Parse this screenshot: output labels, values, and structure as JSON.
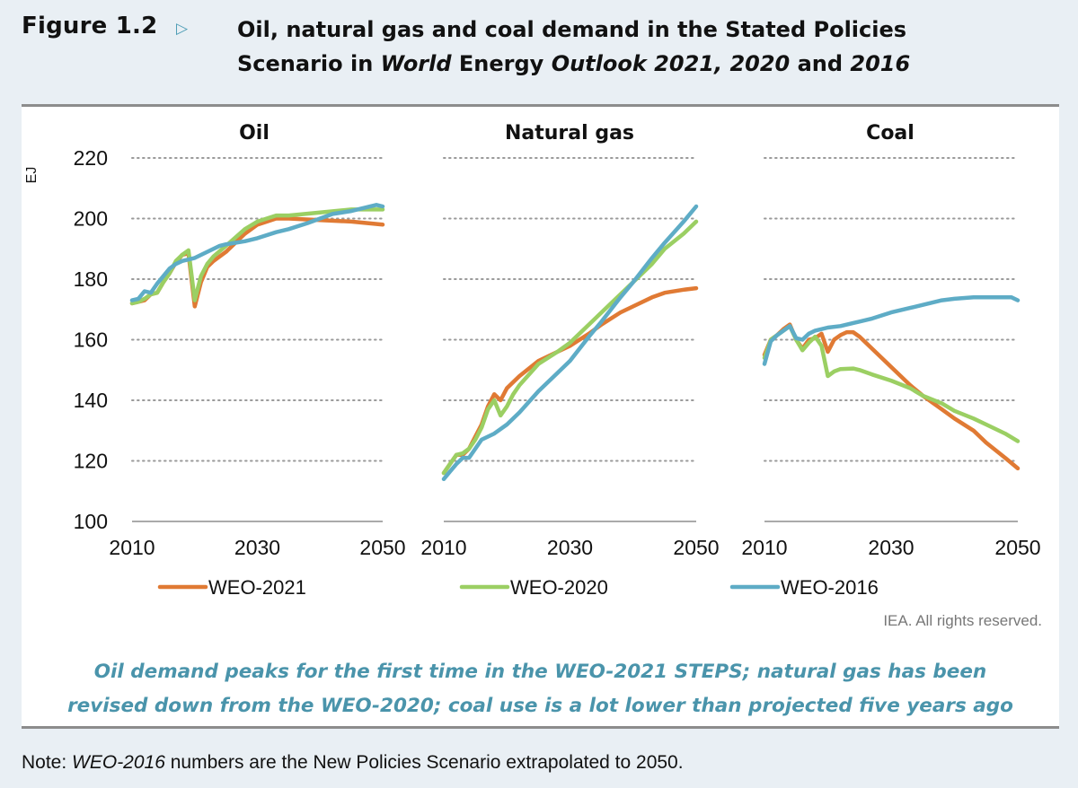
{
  "figure": {
    "label": "Figure 1.2",
    "arrow_icon": "triangle-right-outline",
    "title_line1": "Oil, natural gas and coal demand in the Stated Policies",
    "title_line2_parts": [
      {
        "text": "Scenario in ",
        "italic": false
      },
      {
        "text": "World",
        "italic": true
      },
      {
        "text": " Energy ",
        "italic": false
      },
      {
        "text": "Outlook 2021, 2020",
        "italic": true
      },
      {
        "text": " and ",
        "italic": false
      },
      {
        "text": "2016",
        "italic": true
      }
    ],
    "credit": "IEA. All rights reserved.",
    "caption_line1": "Oil demand peaks for the first time in the WEO-2021 STEPS; natural gas has been",
    "caption_line2": "revised down from the WEO-2020; coal use is a lot lower than projected five years ago",
    "note_prefix": "Note: ",
    "note_italic": "WEO-2016",
    "note_rest": " numbers are the New Policies Scenario extrapolated to 2050."
  },
  "colors": {
    "WEO-2021": "#e07a34",
    "WEO-2020": "#9bcf63",
    "WEO-2016": "#5eacc6",
    "grid": "#9a9a9a",
    "axis": "#777777",
    "caption": "#4a94ab"
  },
  "chart_data": [
    {
      "type": "line",
      "title": "Oil",
      "xlabel": "",
      "ylabel": "EJ",
      "xlim": [
        2010,
        2050
      ],
      "ylim": [
        100,
        220
      ],
      "xticks": [
        2010,
        2030,
        2050
      ],
      "yticks": [
        100,
        120,
        140,
        160,
        180,
        200,
        220
      ],
      "grid": "horizontal-dotted",
      "series": [
        {
          "name": "WEO-2021",
          "x": [
            2010,
            2011,
            2012,
            2013,
            2014,
            2015,
            2016,
            2017,
            2018,
            2019,
            2020,
            2021,
            2022,
            2023,
            2025,
            2028,
            2030,
            2033,
            2035,
            2040,
            2045,
            2050
          ],
          "values": [
            172,
            172.5,
            173,
            175,
            175.5,
            179,
            182,
            185.5,
            188,
            188.5,
            171,
            179,
            184,
            186,
            189,
            195,
            198,
            200,
            200,
            199.5,
            199,
            198
          ]
        },
        {
          "name": "WEO-2020",
          "x": [
            2010,
            2011,
            2012,
            2013,
            2014,
            2015,
            2016,
            2017,
            2018,
            2019,
            2020,
            2021,
            2022,
            2023,
            2025,
            2028,
            2030,
            2033,
            2035,
            2040,
            2045,
            2050
          ],
          "values": [
            172,
            172.5,
            173.5,
            175,
            175.5,
            179,
            182,
            186,
            188,
            189.5,
            173,
            181,
            185,
            187.5,
            191,
            196.5,
            199,
            201,
            201,
            202,
            203,
            203
          ]
        },
        {
          "name": "WEO-2016",
          "x": [
            2010,
            2011,
            2012,
            2013,
            2014,
            2015,
            2016,
            2017,
            2018,
            2020,
            2022,
            2024,
            2025,
            2028,
            2030,
            2033,
            2035,
            2038,
            2040,
            2042,
            2045,
            2049,
            2050
          ],
          "values": [
            173,
            173.5,
            176,
            175.5,
            178.5,
            181,
            183.5,
            185,
            186,
            187,
            189,
            191,
            191.5,
            192.5,
            193.5,
            195.5,
            196.5,
            198.5,
            200,
            201.5,
            202.5,
            204.5,
            204
          ]
        }
      ]
    },
    {
      "type": "line",
      "title": "Natural gas",
      "xlim": [
        2010,
        2050
      ],
      "ylim": [
        100,
        220
      ],
      "xticks": [
        2010,
        2030,
        2050
      ],
      "yticks": [
        100,
        120,
        140,
        160,
        180,
        200,
        220
      ],
      "grid": "horizontal-dotted",
      "series": [
        {
          "name": "WEO-2021",
          "x": [
            2010,
            2011,
            2012,
            2013,
            2014,
            2015,
            2016,
            2017,
            2018,
            2019,
            2020,
            2021,
            2022,
            2025,
            2028,
            2030,
            2033,
            2035,
            2038,
            2040,
            2043,
            2045,
            2048,
            2050
          ],
          "values": [
            116,
            119,
            122,
            122,
            124,
            128,
            132,
            138,
            142,
            140,
            144,
            146,
            148,
            153,
            156,
            158,
            162,
            165,
            169,
            171,
            174,
            175.5,
            176.5,
            177
          ]
        },
        {
          "name": "WEO-2020",
          "x": [
            2010,
            2011,
            2012,
            2013,
            2014,
            2015,
            2016,
            2017,
            2018,
            2019,
            2020,
            2021,
            2022,
            2025,
            2028,
            2030,
            2033,
            2035,
            2038,
            2040,
            2043,
            2045,
            2048,
            2050
          ],
          "values": [
            116,
            119,
            122,
            122.5,
            124,
            127,
            131,
            137,
            140,
            135,
            138,
            142,
            145,
            152,
            156,
            159,
            165,
            169,
            175,
            179,
            185,
            190,
            195,
            199
          ]
        },
        {
          "name": "WEO-2016",
          "x": [
            2010,
            2011,
            2012,
            2013,
            2014,
            2015,
            2016,
            2018,
            2020,
            2022,
            2025,
            2028,
            2030,
            2033,
            2035,
            2038,
            2040,
            2043,
            2045,
            2048,
            2050
          ],
          "values": [
            114,
            116.5,
            119,
            121,
            121,
            124,
            127,
            129,
            132,
            136,
            143,
            149,
            153,
            161,
            166,
            174,
            179,
            187,
            192,
            199,
            204
          ]
        }
      ]
    },
    {
      "type": "line",
      "title": "Coal",
      "xlim": [
        2010,
        2050
      ],
      "ylim": [
        100,
        220
      ],
      "xticks": [
        2010,
        2030,
        2050
      ],
      "yticks": [
        100,
        120,
        140,
        160,
        180,
        200,
        220
      ],
      "grid": "horizontal-dotted",
      "series": [
        {
          "name": "WEO-2021",
          "x": [
            2010,
            2011,
            2012,
            2013,
            2014,
            2015,
            2016,
            2017,
            2018,
            2019,
            2020,
            2021,
            2022,
            2023,
            2024,
            2025,
            2027,
            2030,
            2033,
            2035,
            2038,
            2040,
            2043,
            2045,
            2048,
            2050
          ],
          "values": [
            155,
            160,
            161.5,
            163.5,
            165,
            160,
            157,
            160,
            160.5,
            162,
            156,
            160,
            161.5,
            162.5,
            162.5,
            161,
            157,
            151,
            145,
            141.5,
            137,
            134,
            130,
            126,
            121,
            117.5
          ]
        },
        {
          "name": "WEO-2020",
          "x": [
            2010,
            2011,
            2012,
            2013,
            2014,
            2015,
            2016,
            2017,
            2018,
            2019,
            2020,
            2021,
            2022,
            2024,
            2025,
            2027,
            2030,
            2033,
            2035,
            2038,
            2040,
            2043,
            2045,
            2048,
            2050
          ],
          "values": [
            154,
            160,
            161.5,
            163,
            164.5,
            160,
            156.5,
            159,
            161,
            158,
            148,
            149.5,
            150.3,
            150.5,
            150,
            148.5,
            146.5,
            144,
            141.5,
            139,
            136.5,
            134,
            132,
            129,
            126.5
          ]
        },
        {
          "name": "WEO-2016",
          "x": [
            2010,
            2011,
            2012,
            2013,
            2014,
            2015,
            2016,
            2017,
            2018,
            2020,
            2022,
            2024,
            2025,
            2027,
            2030,
            2033,
            2035,
            2038,
            2040,
            2043,
            2045,
            2047,
            2049,
            2050
          ],
          "values": [
            152,
            159.5,
            161.5,
            163,
            164.5,
            160.5,
            160,
            162,
            163,
            164,
            164.5,
            165.5,
            166,
            167,
            169,
            170.5,
            171.5,
            173,
            173.5,
            174,
            174,
            174,
            174,
            173
          ]
        }
      ]
    }
  ],
  "legend": {
    "position": "bottom",
    "entries": [
      "WEO-2021",
      "WEO-2020",
      "WEO-2016"
    ]
  }
}
